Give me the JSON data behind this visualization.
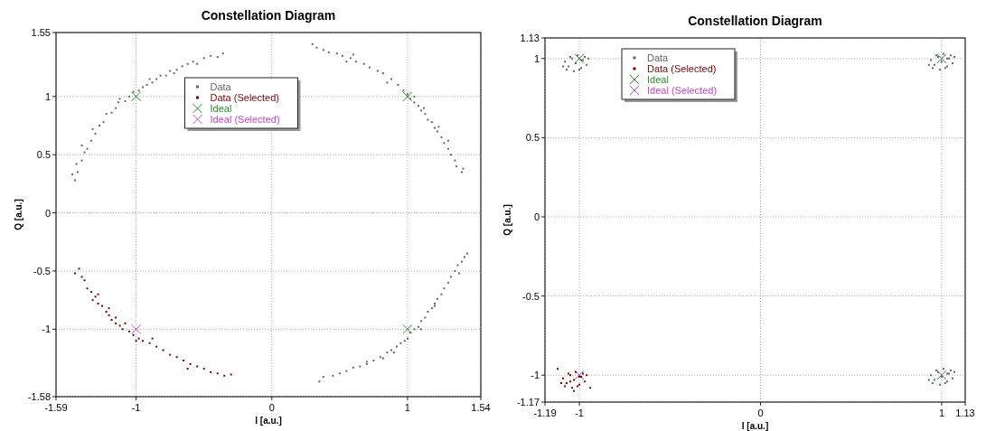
{
  "chart_data": [
    {
      "type": "scatter",
      "title": "Constellation Diagram",
      "xlabel": "I [a.u.]",
      "ylabel": "Q [a.u.]",
      "xlim": [
        -1.59,
        1.54
      ],
      "ylim": [
        -1.58,
        1.55
      ],
      "xticks": [
        -1.59,
        -1,
        0,
        1,
        1.54
      ],
      "yticks": [
        -1.58,
        -1,
        -0.5,
        0,
        0.5,
        1,
        1.55
      ],
      "grid": true,
      "legend": "top",
      "series": [
        {
          "name": "Data",
          "color": "#666666",
          "marker": "square",
          "x": [
            -1.45,
            -1.43,
            -1.44,
            -1.4,
            -1.38,
            -1.36,
            -1.4,
            -1.33,
            -1.3,
            -1.32,
            -1.27,
            -1.24,
            -1.22,
            -1.18,
            -1.15,
            -1.13,
            -1.08,
            -1.05,
            -1.02,
            -0.98,
            -0.95,
            -0.92,
            -0.88,
            -0.85,
            -0.82,
            -0.78,
            -0.75,
            -0.7,
            -0.66,
            -0.62,
            -0.58,
            -0.55,
            -0.5,
            -0.45,
            -0.4,
            -0.36,
            -1.47,
            -1.12,
            -0.9,
            -0.72,
            0.3,
            0.33,
            0.38,
            0.42,
            0.48,
            0.52,
            0.58,
            0.62,
            0.68,
            0.72,
            0.78,
            0.82,
            0.88,
            0.93,
            0.97,
            1.0,
            1.02,
            1.05,
            1.08,
            1.1,
            1.13,
            1.15,
            1.18,
            1.2,
            1.22,
            1.25,
            1.27,
            1.3,
            1.32,
            1.35,
            1.36,
            1.4,
            1.41,
            0.55,
            0.85,
            1.05,
            1.12,
            1.23,
            1.3,
            0.6,
            0.35,
            0.38,
            0.45,
            0.5,
            0.55,
            0.6,
            0.65,
            0.7,
            0.75,
            0.8,
            0.85,
            0.88,
            0.92,
            0.95,
            1.0,
            1.02,
            1.05,
            1.08,
            1.1,
            1.13,
            1.15,
            1.18,
            1.2,
            1.22,
            1.25,
            1.27,
            1.3,
            1.32,
            1.35,
            1.37,
            1.4,
            1.42,
            1.44,
            1.38,
            0.9,
            0.7,
            1.2,
            1.1,
            0.82,
            0.98
          ],
          "values": [
            0.28,
            0.35,
            0.42,
            0.45,
            0.52,
            0.55,
            0.58,
            0.62,
            0.68,
            0.72,
            0.75,
            0.78,
            0.85,
            0.86,
            0.9,
            0.95,
            0.96,
            1.0,
            1.04,
            1.05,
            1.08,
            1.1,
            1.12,
            1.15,
            1.18,
            1.18,
            1.22,
            1.23,
            1.26,
            1.28,
            1.3,
            1.28,
            1.33,
            1.35,
            1.34,
            1.37,
            0.33,
            0.98,
            1.15,
            1.2,
            1.45,
            1.42,
            1.4,
            1.38,
            1.37,
            1.35,
            1.33,
            1.3,
            1.28,
            1.25,
            1.22,
            1.2,
            1.15,
            1.1,
            1.05,
            1.02,
            0.98,
            0.95,
            0.92,
            0.88,
            0.85,
            0.8,
            0.78,
            0.73,
            0.7,
            0.65,
            0.6,
            0.55,
            0.5,
            0.45,
            0.4,
            0.35,
            0.38,
            1.3,
            1.12,
            1.0,
            0.9,
            0.74,
            0.62,
            1.36,
            -1.45,
            -1.41,
            -1.4,
            -1.38,
            -1.36,
            -1.33,
            -1.32,
            -1.28,
            -1.27,
            -1.24,
            -1.2,
            -1.18,
            -1.15,
            -1.12,
            -1.08,
            -1.03,
            -1.0,
            -0.98,
            -0.93,
            -0.9,
            -0.85,
            -0.82,
            -0.78,
            -0.74,
            -0.7,
            -0.65,
            -0.6,
            -0.55,
            -0.5,
            -0.45,
            -0.42,
            -0.38,
            -0.35,
            -0.52,
            -1.2,
            -1.3,
            -0.8,
            -1.0,
            -1.25,
            -1.1
          ]
        },
        {
          "name": "Data (Selected)",
          "color": "#800000",
          "marker": "square",
          "x": [
            -1.45,
            -1.42,
            -1.4,
            -1.38,
            -1.36,
            -1.33,
            -1.3,
            -1.32,
            -1.28,
            -1.25,
            -1.22,
            -1.2,
            -1.18,
            -1.15,
            -1.12,
            -1.1,
            -1.05,
            -1.02,
            -0.98,
            -0.95,
            -0.9,
            -0.85,
            -0.8,
            -0.75,
            -0.7,
            -0.65,
            -0.6,
            -0.55,
            -0.5,
            -0.45,
            -0.4,
            -0.35,
            -0.3,
            -1.28,
            -1.2,
            -1.15,
            -1.08,
            -1.0,
            -0.88,
            -0.62
          ],
          "values": [
            -0.52,
            -0.48,
            -0.55,
            -0.58,
            -0.65,
            -0.68,
            -0.72,
            -0.75,
            -0.78,
            -0.8,
            -0.85,
            -0.88,
            -0.92,
            -0.95,
            -0.97,
            -1.0,
            -1.02,
            -1.05,
            -1.08,
            -1.1,
            -1.12,
            -1.15,
            -1.18,
            -1.22,
            -1.24,
            -1.27,
            -1.3,
            -1.32,
            -1.34,
            -1.37,
            -1.38,
            -1.4,
            -1.39,
            -0.7,
            -0.82,
            -0.9,
            -0.95,
            -1.1,
            -1.08,
            -1.34
          ]
        },
        {
          "name": "Ideal",
          "color": "#2e8b2e",
          "marker": "cross",
          "x": [
            -1,
            1,
            1
          ],
          "values": [
            1,
            1,
            -1
          ]
        },
        {
          "name": "Ideal (Selected)",
          "color": "#cc44cc",
          "marker": "cross",
          "x": [
            -1
          ],
          "values": [
            -1
          ]
        }
      ]
    },
    {
      "type": "scatter",
      "title": "Constellation Diagram",
      "xlabel": "I [a.u.]",
      "ylabel": "Q [a.u.]",
      "xlim": [
        -1.19,
        1.13
      ],
      "ylim": [
        -1.17,
        1.13
      ],
      "xticks": [
        -1.19,
        -1,
        0,
        1,
        1.13
      ],
      "yticks": [
        -1.17,
        -1,
        -0.5,
        0,
        0.5,
        1,
        1.13
      ],
      "grid": true,
      "legend": "top left",
      "series": [
        {
          "name": "Data",
          "color": "#666666",
          "marker": "square",
          "x": [
            -1.02,
            -0.98,
            -1.06,
            -1.0,
            -1.05,
            -0.96,
            -1.08,
            -1.01,
            -1.03,
            -0.97,
            -1.07,
            -0.99,
            -1.04,
            -0.95,
            -1.09,
            -0.99,
            1.0,
            1.04,
            0.96,
            1.02,
            0.97,
            1.06,
            0.94,
            1.01,
            0.99,
            1.05,
            0.95,
            1.03,
            0.98,
            1.07,
            0.93,
            1.03,
            1.0,
            1.04,
            0.96,
            1.02,
            0.97,
            1.06,
            0.94,
            1.01,
            0.99,
            1.05,
            0.95,
            1.03,
            0.98,
            1.07,
            0.93,
            1.03
          ],
          "values": [
            0.97,
            0.99,
            0.95,
            0.93,
            1.01,
            0.96,
            0.98,
            1.02,
            0.92,
            1.01,
            0.93,
            0.99,
            1.0,
            1.0,
            0.95,
            0.94,
            0.98,
            1.0,
            0.96,
            0.94,
            1.02,
            0.97,
            0.99,
            1.03,
            0.93,
            1.02,
            0.94,
            1.0,
            1.01,
            1.01,
            0.96,
            0.95,
            -1.01,
            -0.99,
            -1.03,
            -1.05,
            -0.97,
            -1.02,
            -1.0,
            -0.96,
            -1.06,
            -0.97,
            -1.05,
            -0.99,
            -0.98,
            -0.98,
            -1.03,
            -1.04
          ]
        },
        {
          "name": "Data (Selected)",
          "color": "#800000",
          "marker": "square",
          "x": [
            -1.03,
            -0.99,
            -1.07,
            -1.01,
            -1.06,
            -0.97,
            -1.09,
            -1.02,
            -1.04,
            -0.98,
            -1.08,
            -1.0,
            -1.05,
            -0.96,
            -1.1,
            -1.0,
            -1.12,
            -0.94,
            -1.03,
            -1.05
          ],
          "values": [
            -1.03,
            -1.01,
            -1.05,
            -1.07,
            -0.99,
            -1.04,
            -1.02,
            -0.98,
            -1.08,
            -0.99,
            -1.07,
            -1.01,
            -1.0,
            -1.0,
            -1.05,
            -1.06,
            -0.96,
            -1.08,
            -1.1,
            -1.04
          ]
        },
        {
          "name": "Ideal",
          "color": "#2e8b2e",
          "marker": "cross",
          "x": [
            -1,
            1,
            1
          ],
          "values": [
            1,
            1,
            -1
          ]
        },
        {
          "name": "Ideal (Selected)",
          "color": "#cc44cc",
          "marker": "cross",
          "x": [
            -1
          ],
          "values": [
            -1
          ]
        }
      ]
    }
  ]
}
